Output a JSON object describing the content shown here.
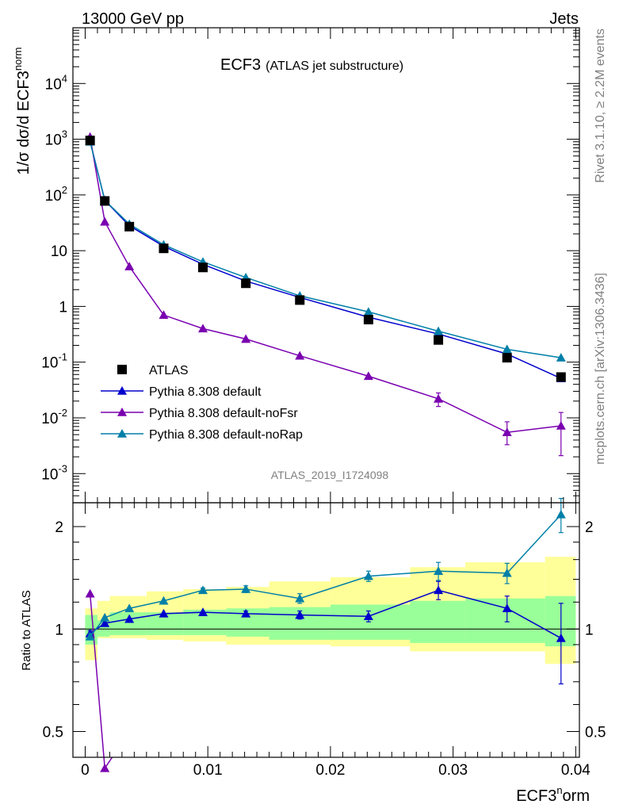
{
  "header": {
    "left": "13000 GeV pp",
    "right": "Jets",
    "title_main": "ECF3",
    "title_sub": "(ATLAS jet substructure)",
    "analysis_id": "ATLAS_2019_I1724098",
    "side_top": "Rivet 3.1.10, ≥ 2.2M events",
    "side_bottom": "mcplots.cern.ch [arXiv:1306.3436]"
  },
  "axes": {
    "ylabel_main": "1/σ dσ/d ECF3^norm",
    "ylabel_ratio": "Ratio to ATLAS",
    "xlabel": "ECF3^norm",
    "x_ticks": [
      "0",
      "0.01",
      "0.02",
      "0.03",
      "0.04"
    ],
    "y_ticks_main": [
      "10^4",
      "10^3",
      "10^2",
      "10",
      "1",
      "10^-1",
      "10^-2",
      "10^-3"
    ],
    "y_ticks_ratio": [
      "2",
      "1",
      "0.5"
    ]
  },
  "legend": [
    {
      "label": "ATLAS",
      "marker": "square",
      "color": "#000000"
    },
    {
      "label": "Pythia 8.308 default",
      "marker": "triangle",
      "color": "#0000cc"
    },
    {
      "label": "Pythia 8.308 default-noFsr",
      "marker": "triangle",
      "color": "#7a00b0"
    },
    {
      "label": "Pythia 8.308 default-noRap",
      "marker": "triangle",
      "color": "#007fa8"
    }
  ],
  "chart_data": {
    "type": "scatter",
    "xlim": [
      -0.001,
      0.0403
    ],
    "ylim_main": [
      0.0003,
      100000
    ],
    "ylim_ratio": [
      0.42,
      2.35
    ],
    "log_y": true,
    "bin_edges": [
      0,
      0.001,
      0.002,
      0.005,
      0.008,
      0.0115,
      0.015,
      0.02,
      0.0265,
      0.031,
      0.0375,
      0.04
    ],
    "x": [
      0.0004,
      0.0016,
      0.0036,
      0.0064,
      0.0096,
      0.0131,
      0.0175,
      0.0231,
      0.0288,
      0.0344,
      0.0388
    ],
    "data": {
      "name": "ATLAS",
      "values": [
        950,
        78,
        27,
        11,
        5,
        2.6,
        1.3,
        0.58,
        0.25,
        0.12,
        0.054
      ]
    },
    "band_stat": [
      [
        0.9,
        1.1
      ],
      [
        0.95,
        1.06
      ],
      [
        0.96,
        1.12
      ],
      [
        0.96,
        1.12
      ],
      [
        0.96,
        1.14
      ],
      [
        0.95,
        1.15
      ],
      [
        0.93,
        1.16
      ],
      [
        0.93,
        1.18
      ],
      [
        0.91,
        1.21
      ],
      [
        0.91,
        1.23
      ],
      [
        0.89,
        1.25
      ]
    ],
    "band_total": [
      [
        0.81,
        1.15
      ],
      [
        0.94,
        1.21
      ],
      [
        0.94,
        1.25
      ],
      [
        0.93,
        1.29
      ],
      [
        0.92,
        1.31
      ],
      [
        0.9,
        1.33
      ],
      [
        0.9,
        1.38
      ],
      [
        0.89,
        1.42
      ],
      [
        0.86,
        1.52
      ],
      [
        0.86,
        1.57
      ],
      [
        0.79,
        1.63
      ]
    ],
    "series": [
      {
        "name": "Pythia 8.308 default",
        "color": "#0000cc",
        "values": [
          920,
          80,
          28,
          12,
          5.7,
          2.85,
          1.45,
          0.64,
          0.32,
          0.14,
          0.051
        ],
        "ratio": [
          0.97,
          1.04,
          1.07,
          1.11,
          1.12,
          1.11,
          1.1,
          1.09,
          1.3,
          1.15,
          0.94
        ],
        "ratio_err": [
          0.02,
          0.01,
          0.01,
          0.01,
          0.01,
          0.02,
          0.03,
          0.04,
          0.08,
          0.1,
          0.25
        ]
      },
      {
        "name": "Pythia 8.308 default-noFsr",
        "color": "#7a00b0",
        "values": [
          1100,
          33,
          5.2,
          0.7,
          0.4,
          0.26,
          0.13,
          0.056,
          0.022,
          0.0055,
          0.0072
        ],
        "ratio": [
          1.27,
          0.39,
          null,
          null,
          null,
          null,
          null,
          null,
          null,
          null,
          null
        ],
        "ratio_err": [
          0.01,
          0.01,
          0,
          0,
          0,
          0,
          0,
          0,
          0,
          0,
          0
        ]
      },
      {
        "name": "Pythia 8.308 default-noRap",
        "color": "#007fa8",
        "values": [
          900,
          80,
          30,
          12.8,
          6.3,
          3.3,
          1.55,
          0.8,
          0.36,
          0.17,
          0.12
        ],
        "ratio": [
          0.95,
          1.08,
          1.15,
          1.21,
          1.3,
          1.31,
          1.23,
          1.43,
          1.48,
          1.46,
          2.17
        ],
        "ratio_err": [
          0.02,
          0.01,
          0.01,
          0.01,
          0.02,
          0.03,
          0.04,
          0.05,
          0.09,
          0.1,
          0.25
        ]
      }
    ]
  }
}
